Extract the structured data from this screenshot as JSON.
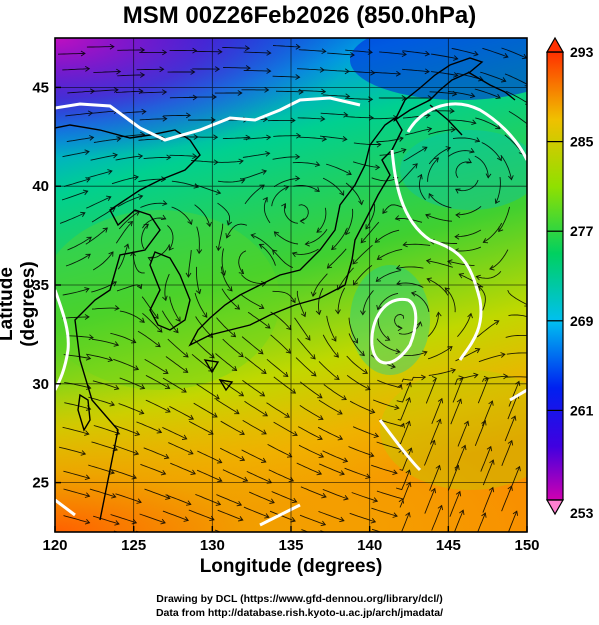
{
  "title": "MSM 00Z26Feb2026 (850.0hPa)",
  "xlabel": "Longitude (degrees)",
  "ylabel": "Latitude  (degrees)",
  "credit_line1": "Drawing by DCL (https://www.gfd-dennou.org/library/dcl/)",
  "credit_line2": "Data from http://database.rish.kyoto-u.ac.jp/arch/jmadata/",
  "chart_data": {
    "type": "heatmap",
    "xlim": [
      120,
      150
    ],
    "ylim": [
      22.5,
      47.5
    ],
    "x_ticks": [
      120,
      125,
      130,
      135,
      140,
      145,
      150
    ],
    "y_ticks": [
      25,
      30,
      35,
      40,
      45
    ],
    "grid": true,
    "colorbar": {
      "min": 253,
      "max": 293,
      "labels": [
        "293",
        "285",
        "277",
        "269",
        "261",
        "253"
      ],
      "label_values": [
        293,
        285,
        277,
        269,
        261,
        253
      ]
    },
    "contour_value": 273,
    "overlay": "wind streamlines"
  },
  "colors": {
    "cold": "#c000c0",
    "cool": "#0010e0",
    "mid": "#00c060",
    "warm": "#e0d000",
    "hot": "#ff3000"
  }
}
